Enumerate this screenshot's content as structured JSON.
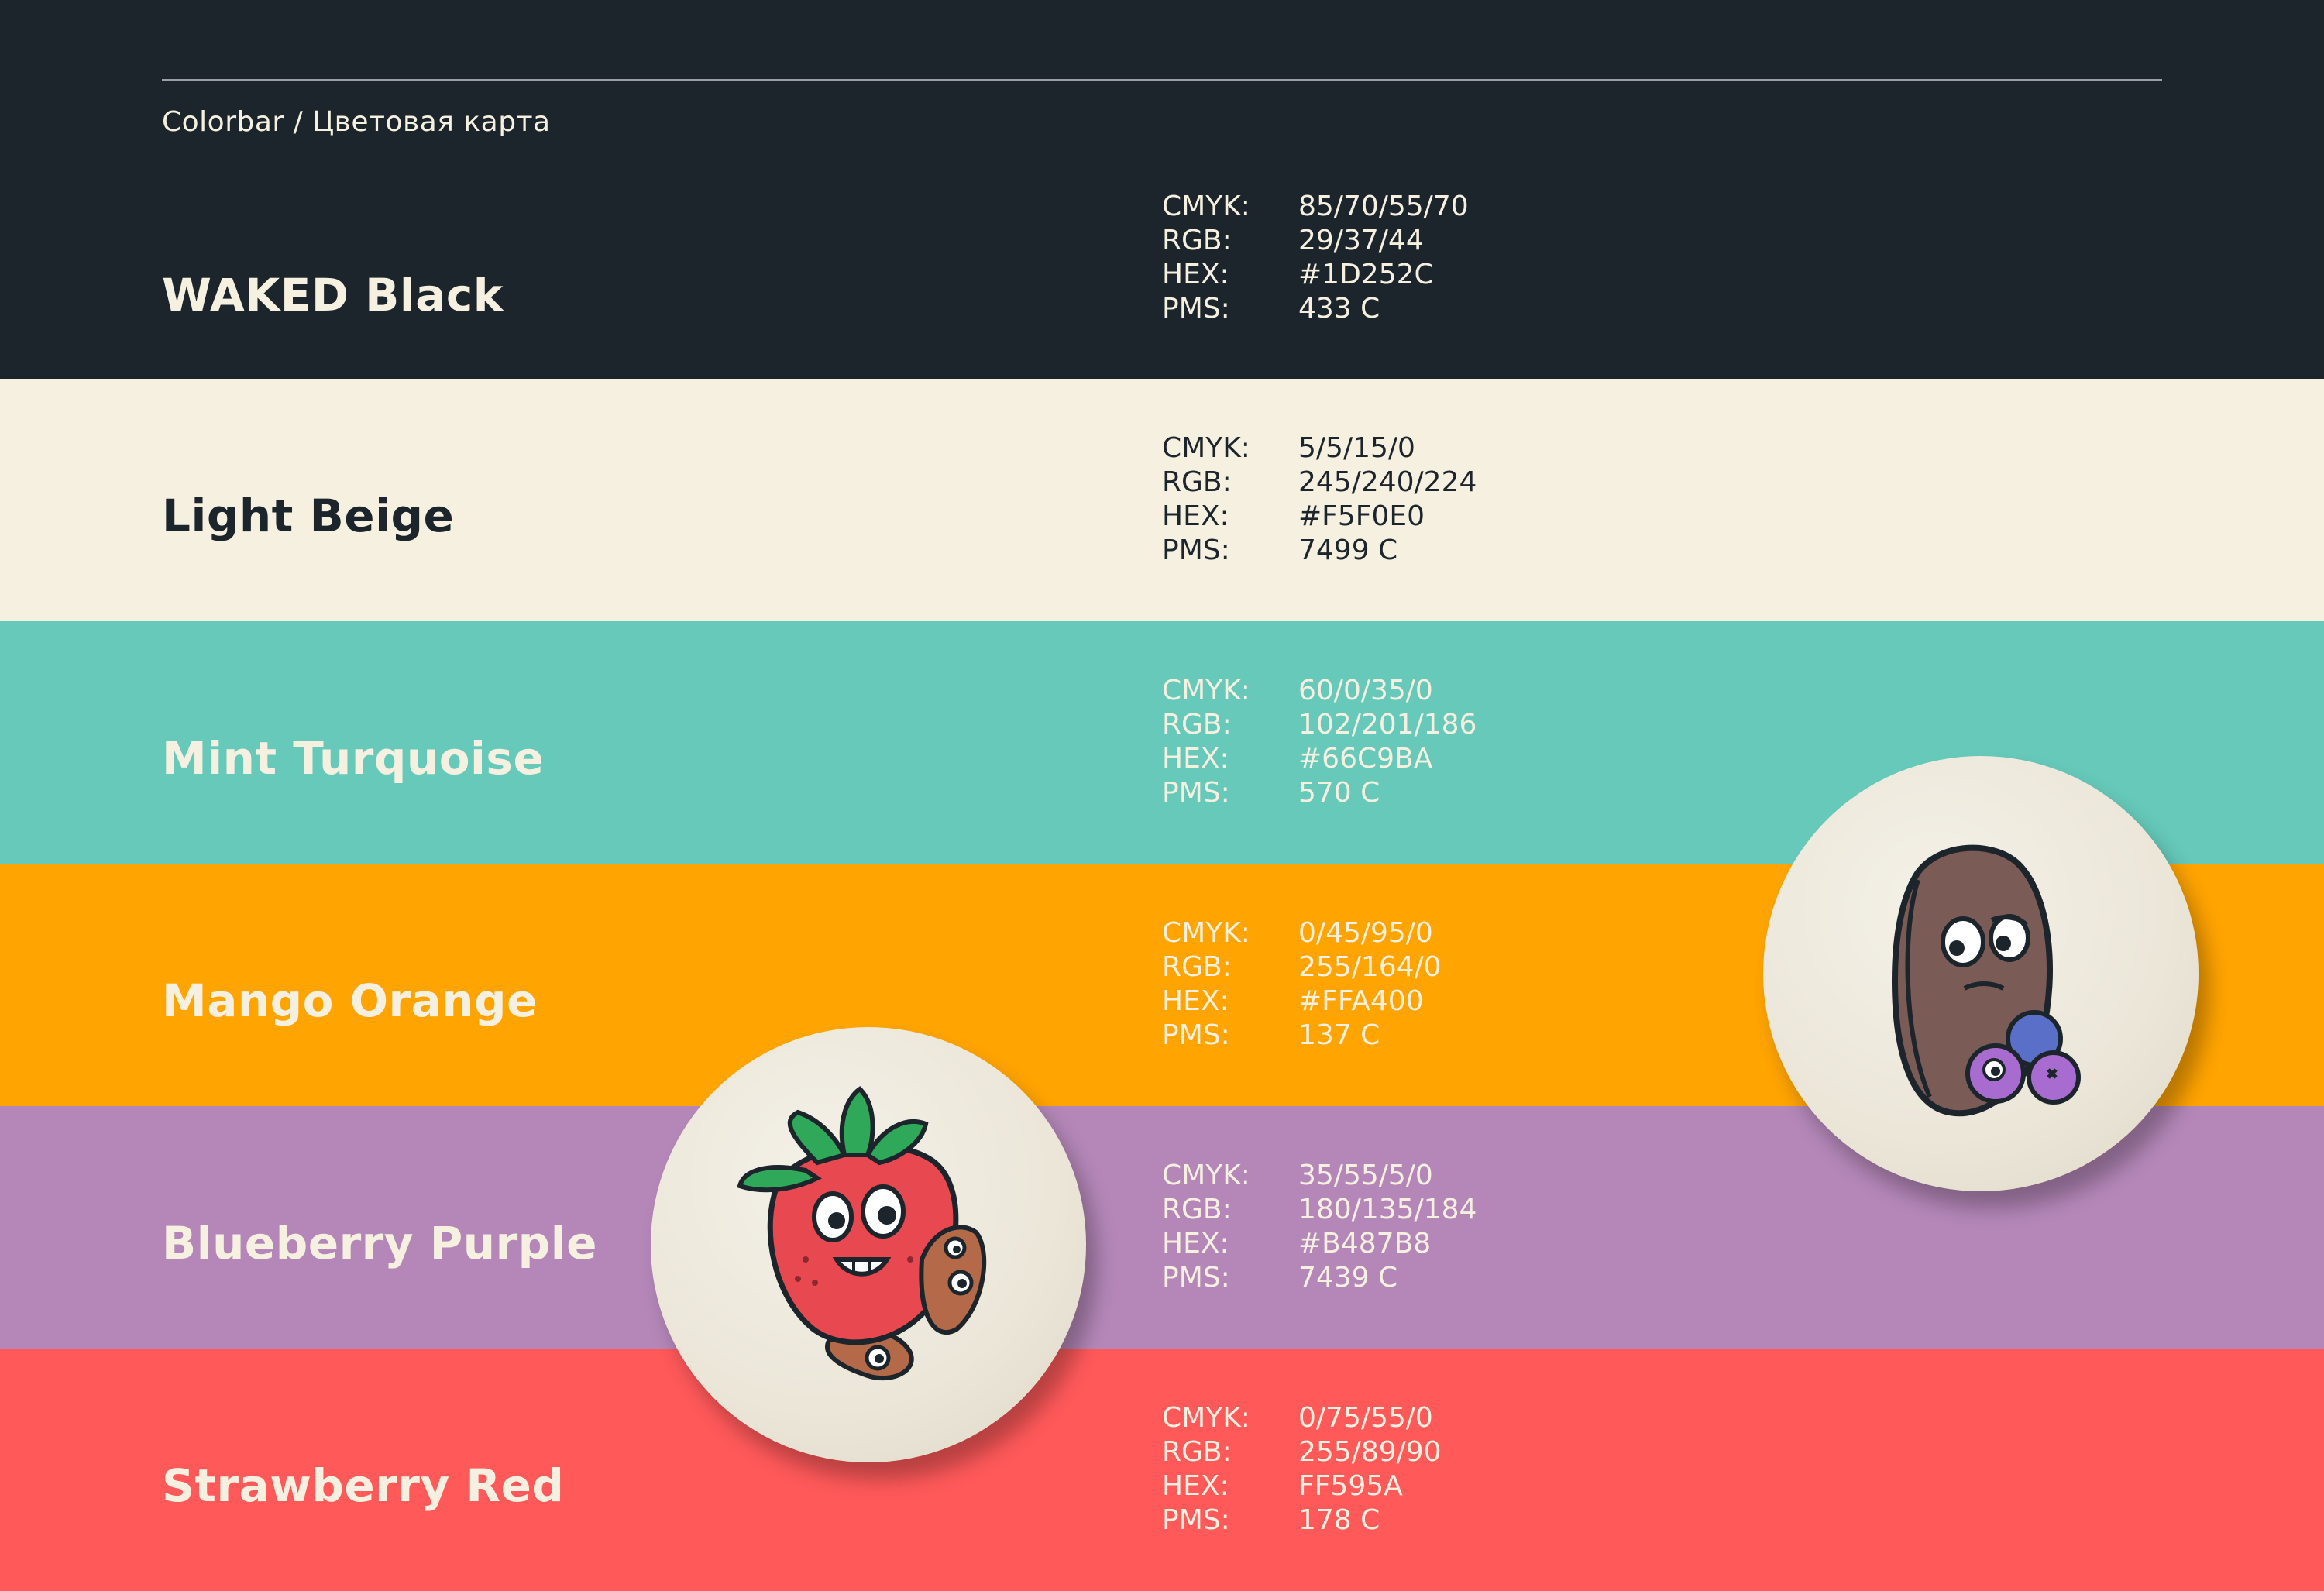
{
  "header": {
    "caption": "Colorbar / Цветовая карта"
  },
  "colors": [
    {
      "name": "WAKED Black",
      "bg": "#1D252C",
      "text": "#F5F0E0",
      "specs": [
        {
          "key": "CMYK:",
          "value": "85/70/55/70"
        },
        {
          "key": "RGB:",
          "value": "29/37/44"
        },
        {
          "key": "HEX:",
          "value": "#1D252C"
        },
        {
          "key": "PMS:",
          "value": "433 C"
        }
      ]
    },
    {
      "name": "Light Beige",
      "bg": "#F5F0E0",
      "text": "#1D252C",
      "specs": [
        {
          "key": "CMYK:",
          "value": "5/5/15/0"
        },
        {
          "key": "RGB:",
          "value": "245/240/224"
        },
        {
          "key": "HEX:",
          "value": "#F5F0E0"
        },
        {
          "key": "PMS:",
          "value": "7499 C"
        }
      ]
    },
    {
      "name": "Mint Turquoise",
      "bg": "#66C9BA",
      "text": "#F5F0E0",
      "specs": [
        {
          "key": "CMYK:",
          "value": "60/0/35/0"
        },
        {
          "key": "RGB:",
          "value": "102/201/186"
        },
        {
          "key": "HEX:",
          "value": "#66C9BA"
        },
        {
          "key": "PMS:",
          "value": "570 C"
        }
      ]
    },
    {
      "name": "Mango Orange",
      "bg": "#FFA400",
      "text": "#F5F0E0",
      "specs": [
        {
          "key": "CMYK:",
          "value": "0/45/95/0"
        },
        {
          "key": "RGB:",
          "value": "255/164/0"
        },
        {
          "key": "HEX:",
          "value": "#FFA400"
        },
        {
          "key": "PMS:",
          "value": "137 C"
        }
      ]
    },
    {
      "name": "Blueberry Purple",
      "bg": "#B487B8",
      "text": "#F5F0E0",
      "specs": [
        {
          "key": "CMYK:",
          "value": "35/55/5/0"
        },
        {
          "key": "RGB:",
          "value": "180/135/184"
        },
        {
          "key": "HEX:",
          "value": "#B487B8"
        },
        {
          "key": "PMS:",
          "value": "7439 C"
        }
      ]
    },
    {
      "name": "Strawberry Red",
      "bg": "#FF595A",
      "text": "#F5F0E0",
      "specs": [
        {
          "key": "CMYK:",
          "value": "0/75/55/0"
        },
        {
          "key": "RGB:",
          "value": "255/89/90"
        },
        {
          "key": "HEX:",
          "value": "FF595A"
        },
        {
          "key": "PMS:",
          "value": "178 C"
        }
      ]
    }
  ],
  "icons": {
    "sticker_left": "strawberry-mascot-icon",
    "sticker_right": "seed-mascot-icon"
  }
}
